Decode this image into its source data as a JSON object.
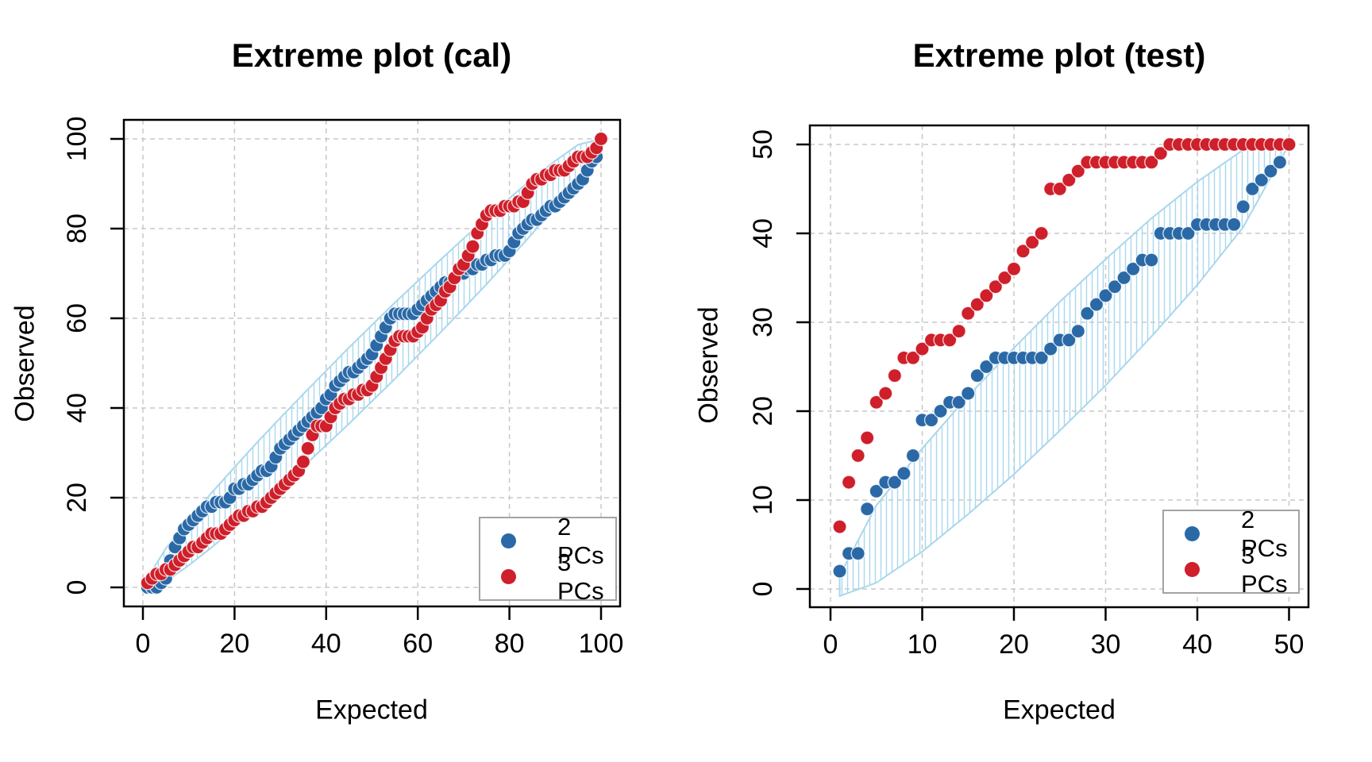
{
  "palette": {
    "blue": "#2A69A6",
    "red": "#CE1F2A",
    "envelope": "#A9D7ED",
    "grid": "#C8C8C8",
    "box": "#000000",
    "legend_border": "#A3A3A3",
    "background": "#FFFFFF"
  },
  "chart_data": [
    {
      "id": "cal",
      "type": "scatter",
      "title": "Extreme plot (cal)",
      "xlabel": "Expected",
      "ylabel": "Observed",
      "xlim": [
        -4,
        104
      ],
      "ylim": [
        -4,
        104
      ],
      "xticks": [
        0,
        20,
        40,
        60,
        80,
        100
      ],
      "yticks": [
        0,
        20,
        40,
        60,
        80,
        100
      ],
      "grid": true,
      "legend": {
        "position": "bottom-right",
        "items": [
          {
            "label": "2 PCs",
            "color": "blue"
          },
          {
            "label": "3 PCs",
            "color": "red"
          }
        ]
      },
      "series": [
        {
          "name": "2 PCs",
          "color": "blue",
          "x_start": 1,
          "x_step": 1,
          "y": [
            0,
            0,
            0,
            1,
            2,
            6,
            9,
            11,
            13,
            14,
            15,
            16,
            17,
            18,
            18,
            19,
            19,
            19,
            20,
            22,
            22,
            23,
            23,
            24,
            25,
            26,
            26,
            27,
            29,
            31,
            32,
            33,
            34,
            35,
            36,
            37,
            38,
            39,
            40,
            42,
            43,
            45,
            46,
            47,
            48,
            48,
            49,
            50,
            51,
            52,
            54,
            56,
            58,
            60,
            61,
            61,
            61,
            61,
            61,
            62,
            63,
            64,
            65,
            66,
            67,
            68,
            68,
            69,
            70,
            70,
            71,
            71,
            72,
            72,
            73,
            73,
            74,
            74,
            74,
            75,
            77,
            79,
            80,
            81,
            82,
            82,
            83,
            84,
            85,
            85,
            86,
            87,
            88,
            89,
            90,
            91,
            93,
            95,
            96,
            100
          ]
        },
        {
          "name": "3 PCs",
          "color": "red",
          "x_start": 1,
          "x_step": 1,
          "y": [
            1,
            2,
            3,
            3,
            4,
            4,
            5,
            6,
            7,
            8,
            9,
            9,
            10,
            11,
            12,
            12,
            12,
            13,
            14,
            15,
            16,
            16,
            17,
            17,
            18,
            18,
            19,
            20,
            21,
            22,
            23,
            24,
            25,
            26,
            28,
            31,
            34,
            36,
            36,
            36,
            38,
            40,
            41,
            42,
            42,
            43,
            43,
            44,
            44,
            45,
            47,
            49,
            51,
            53,
            55,
            56,
            56,
            56,
            56,
            57,
            58,
            60,
            62,
            63,
            64,
            66,
            67,
            69,
            71,
            72,
            74,
            76,
            79,
            81,
            83,
            84,
            84,
            84,
            85,
            85,
            85,
            86,
            86,
            88,
            90,
            91,
            91,
            92,
            92,
            93,
            93,
            93,
            94,
            95,
            96,
            96,
            96,
            97,
            98,
            100
          ]
        }
      ],
      "envelope": {
        "x": [
          1,
          5,
          10,
          15,
          20,
          25,
          30,
          35,
          40,
          45,
          50,
          55,
          60,
          65,
          70,
          75,
          80,
          85,
          90,
          95,
          100
        ],
        "upper": [
          2,
          8.7,
          15.1,
          21.1,
          26.8,
          32.4,
          37.8,
          43.1,
          48.3,
          53.5,
          58.5,
          63.5,
          68.3,
          73.1,
          77.8,
          82.4,
          86.8,
          91.1,
          95.1,
          98.7,
          100
        ],
        "lower": [
          0,
          1.3,
          4.9,
          8.9,
          13.2,
          17.6,
          22.2,
          26.9,
          31.7,
          36.5,
          41.5,
          46.5,
          51.7,
          56.9,
          62.2,
          67.6,
          73.2,
          78.9,
          84.9,
          91.3,
          100
        ]
      }
    },
    {
      "id": "test",
      "type": "scatter",
      "title": "Extreme plot (test)",
      "xlabel": "Expected",
      "ylabel": "Observed",
      "xlim": [
        -2,
        52
      ],
      "ylim": [
        -2,
        52
      ],
      "xticks": [
        0,
        10,
        20,
        30,
        40,
        50
      ],
      "yticks": [
        0,
        10,
        20,
        30,
        40,
        50
      ],
      "grid": true,
      "legend": {
        "position": "bottom-right",
        "items": [
          {
            "label": "2 PCs",
            "color": "blue"
          },
          {
            "label": "3 PCs",
            "color": "red"
          }
        ]
      },
      "series": [
        {
          "name": "2 PCs",
          "color": "blue",
          "x_start": 1,
          "x_step": 1,
          "y": [
            2,
            4,
            4,
            9,
            11,
            12,
            12,
            13,
            15,
            19,
            19,
            20,
            21,
            21,
            22,
            24,
            25,
            26,
            26,
            26,
            26,
            26,
            26,
            27,
            28,
            28,
            29,
            31,
            32,
            33,
            34,
            35,
            36,
            37,
            37,
            40,
            40,
            40,
            40,
            41,
            41,
            41,
            41,
            41,
            43,
            45,
            46,
            47,
            48,
            50
          ]
        },
        {
          "name": "3 PCs",
          "color": "red",
          "x_start": 1,
          "x_step": 1,
          "y": [
            7,
            12,
            15,
            17,
            21,
            22,
            24,
            26,
            26,
            27,
            28,
            28,
            28,
            29,
            31,
            32,
            33,
            34,
            35,
            36,
            38,
            39,
            40,
            45,
            45,
            46,
            47,
            48,
            48,
            48,
            48,
            48,
            48,
            48,
            48,
            49,
            50,
            50,
            50,
            50,
            50,
            50,
            50,
            50,
            50,
            50,
            50,
            50,
            50,
            50
          ]
        }
      ],
      "envelope": {
        "x": [
          1,
          5,
          10,
          15,
          20,
          25,
          30,
          35,
          40,
          45,
          50
        ],
        "upper": [
          1.5,
          9.4,
          15.8,
          21.7,
          27.1,
          32.3,
          37.1,
          41.7,
          45.8,
          49.4,
          50
        ],
        "lower": [
          -0.8,
          0.7,
          4.2,
          8.4,
          12.9,
          17.8,
          22.9,
          28.4,
          34.2,
          40.7,
          50
        ]
      }
    }
  ]
}
